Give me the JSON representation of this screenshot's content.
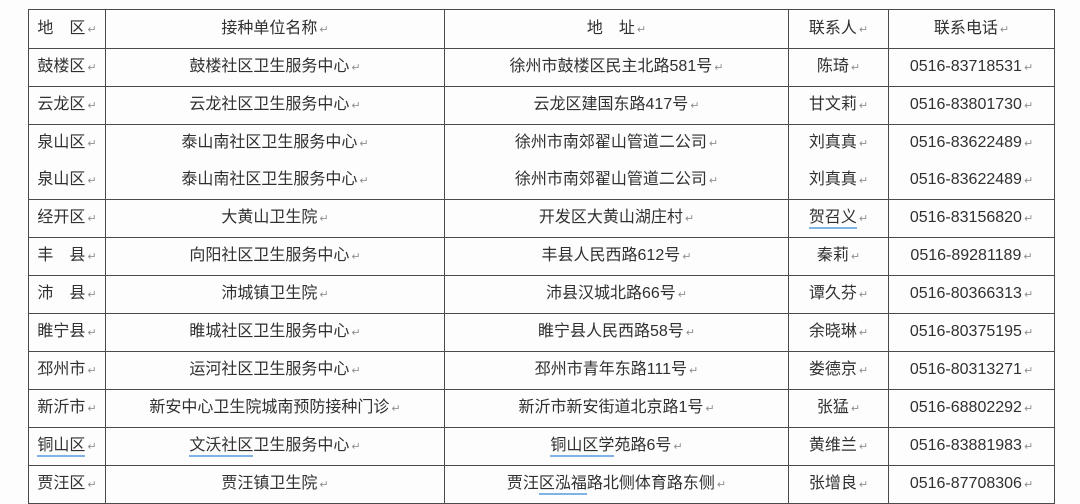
{
  "marks": {
    "paragraph_end": "↵"
  },
  "colors": {
    "underline_blue": "#7fb2e5",
    "grid_border": "#4a4a4a",
    "text": "#303030",
    "paragraph_mark": "#8f8f8f",
    "background": "#fdfdfd"
  },
  "table": {
    "columns": [
      {
        "key": "district",
        "label": "地　区"
      },
      {
        "key": "name",
        "label": "接种单位名称"
      },
      {
        "key": "address",
        "label": "地　址"
      },
      {
        "key": "contact",
        "label": "联系人"
      },
      {
        "key": "phone",
        "label": "联系电话"
      }
    ],
    "rows": [
      {
        "cells": [
          [
            [
              "鼓楼区"
            ]
          ],
          [
            [
              "鼓楼社区卫生服务中心"
            ]
          ],
          [
            [
              "徐州市鼓楼区民主北路581号"
            ]
          ],
          [
            [
              "陈琦"
            ]
          ],
          [
            [
              "0516-83718531"
            ]
          ]
        ]
      },
      {
        "cells": [
          [
            [
              "云龙区"
            ]
          ],
          [
            [
              "云龙社区卫生服务中心"
            ]
          ],
          [
            [
              "云龙区建国东路417号"
            ]
          ],
          [
            [
              "甘文莉"
            ]
          ],
          [
            [
              "0516-83801730"
            ]
          ]
        ]
      },
      {
        "cells": [
          [
            [
              "泉山区"
            ],
            [
              "泉山区"
            ]
          ],
          [
            [
              "泰山南社区卫生服务中心"
            ],
            [
              "泰山南社区卫生服务中心"
            ]
          ],
          [
            [
              "徐州市南郊翟山管道二公司"
            ],
            [
              "徐州市南郊翟山管道二公司"
            ]
          ],
          [
            [
              "刘真真"
            ],
            [
              "刘真真"
            ]
          ],
          [
            [
              "0516-83622489"
            ],
            [
              "0516-83622489"
            ]
          ]
        ]
      },
      {
        "cells": [
          [
            [
              "经开区"
            ]
          ],
          [
            [
              "大黄山卫生院"
            ]
          ],
          [
            [
              "开发区大黄山湖庄村"
            ]
          ],
          [
            [
              {
                "text": "贺召义",
                "underline": true
              }
            ]
          ],
          [
            [
              "0516-83156820"
            ]
          ]
        ]
      },
      {
        "cells": [
          [
            [
              "丰　县"
            ]
          ],
          [
            [
              "向阳社区卫生服务中心"
            ]
          ],
          [
            [
              "丰县人民西路612号"
            ]
          ],
          [
            [
              "秦莉"
            ]
          ],
          [
            [
              "0516-89281189"
            ]
          ]
        ]
      },
      {
        "cells": [
          [
            [
              "沛　县"
            ]
          ],
          [
            [
              "沛城镇卫生院"
            ]
          ],
          [
            [
              "沛县汉城北路66号"
            ]
          ],
          [
            [
              "谭久芬"
            ]
          ],
          [
            [
              "0516-80366313"
            ]
          ]
        ]
      },
      {
        "cells": [
          [
            [
              "睢宁县"
            ]
          ],
          [
            [
              "睢城社区卫生服务中心"
            ]
          ],
          [
            [
              "睢宁县人民西路58号"
            ]
          ],
          [
            [
              "余晓琳"
            ]
          ],
          [
            [
              "0516-80375195"
            ]
          ]
        ]
      },
      {
        "cells": [
          [
            [
              "邳州市"
            ]
          ],
          [
            [
              "运河社区卫生服务中心"
            ]
          ],
          [
            [
              "邳州市青年东路111号"
            ]
          ],
          [
            [
              "娄德京"
            ]
          ],
          [
            [
              "0516-80313271"
            ]
          ]
        ]
      },
      {
        "cells": [
          [
            [
              "新沂市"
            ]
          ],
          [
            [
              "新安中心卫生院城南预防接种门诊"
            ]
          ],
          [
            [
              "新沂市新安街道北京路1号"
            ]
          ],
          [
            [
              "张猛"
            ]
          ],
          [
            [
              "0516-68802292"
            ]
          ]
        ]
      },
      {
        "cells": [
          [
            [
              {
                "text": "铜山区",
                "underline": true
              }
            ]
          ],
          [
            [
              {
                "text": "文沃社区",
                "underline": true
              },
              "卫生服务中心"
            ]
          ],
          [
            [
              {
                "text": "铜山区学",
                "underline": true
              },
              "苑路6号"
            ]
          ],
          [
            [
              "黄维兰"
            ]
          ],
          [
            [
              "0516-83881983"
            ]
          ]
        ]
      },
      {
        "cells": [
          [
            [
              "贾汪区"
            ]
          ],
          [
            [
              "贾汪镇卫生院"
            ]
          ],
          [
            [
              "贾汪",
              {
                "text": "区泓福",
                "underline": true
              },
              "路北侧体育路东侧"
            ]
          ],
          [
            [
              "张增良"
            ]
          ],
          [
            [
              "0516-87708306"
            ]
          ]
        ]
      }
    ]
  }
}
